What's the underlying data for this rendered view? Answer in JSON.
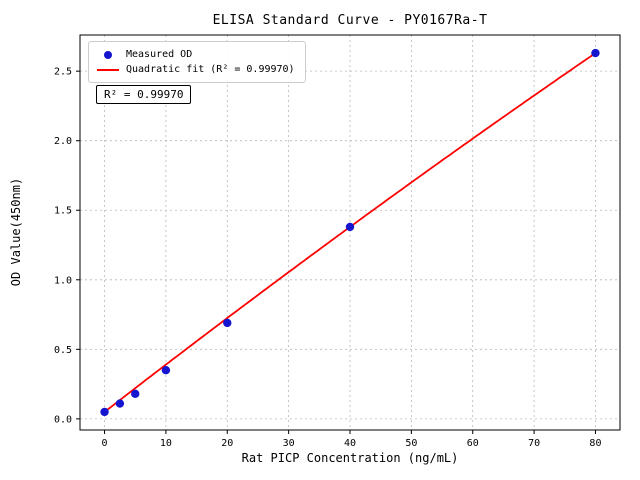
{
  "chart_data": {
    "type": "scatter",
    "title": "ELISA Standard Curve - PY0167Ra-T",
    "xlabel": "Rat PICP Concentration (ng/mL)",
    "ylabel": "OD Value(450nm)",
    "xlim": [
      -4,
      84
    ],
    "ylim": [
      -0.08,
      2.76
    ],
    "xticks": [
      0,
      10,
      20,
      30,
      40,
      50,
      60,
      70,
      80
    ],
    "yticks": [
      0.0,
      0.5,
      1.0,
      1.5,
      2.0,
      2.5
    ],
    "grid": "dotted",
    "legend_position": "upper left",
    "series": [
      {
        "name": "Measured OD",
        "type": "scatter",
        "color": "#1515d0",
        "x": [
          0,
          2.5,
          5,
          10,
          20,
          40,
          80
        ],
        "y": [
          0.05,
          0.11,
          0.18,
          0.35,
          0.69,
          1.38,
          2.63
        ]
      },
      {
        "name": "Quadratic fit (R² = 0.99970)",
        "type": "line",
        "color": "#ff0000",
        "fit": {
          "a": -2.5e-05,
          "b": 0.03425,
          "c": 0.05
        },
        "x_range": [
          0,
          80
        ]
      }
    ],
    "annotation": "R² = 0.99970",
    "r_squared": "0.99970"
  }
}
